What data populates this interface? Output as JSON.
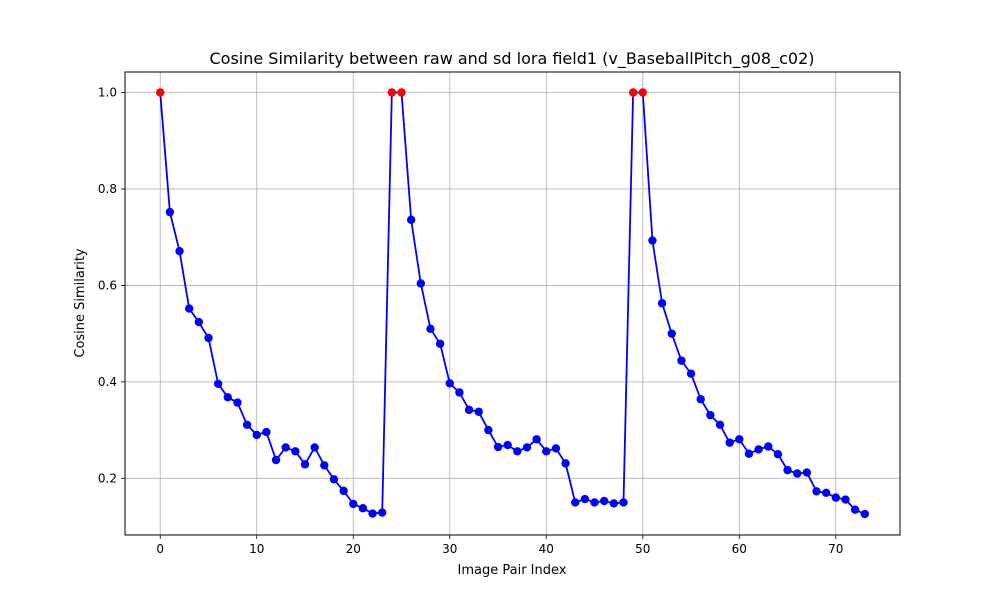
{
  "chart_data": {
    "type": "line",
    "title": "Cosine Similarity between raw and sd lora field1 (v_BaseballPitch_g08_c02)",
    "xlabel": "Image Pair Index",
    "ylabel": "Cosine Similarity",
    "xlim": [
      -3.65,
      76.65
    ],
    "ylim": [
      0.0825,
      1.0425
    ],
    "xticks": [
      0,
      10,
      20,
      30,
      40,
      50,
      60,
      70
    ],
    "yticks": [
      0.2,
      0.4,
      0.6,
      0.8,
      1.0
    ],
    "xtick_labels": [
      "0",
      "10",
      "20",
      "30",
      "40",
      "50",
      "60",
      "70"
    ],
    "ytick_labels": [
      "0.2",
      "0.4",
      "0.6",
      "0.8",
      "1.0"
    ],
    "grid": true,
    "line_color": "#0000ff",
    "marker_color": "#0000ff",
    "highlight_color": "#ff0000",
    "x": [
      0,
      1,
      2,
      3,
      4,
      5,
      6,
      7,
      8,
      9,
      10,
      11,
      12,
      13,
      14,
      15,
      16,
      17,
      18,
      19,
      20,
      21,
      22,
      23,
      24,
      25,
      26,
      27,
      28,
      29,
      30,
      31,
      32,
      33,
      34,
      35,
      36,
      37,
      38,
      39,
      40,
      41,
      42,
      43,
      44,
      45,
      46,
      47,
      48,
      49,
      50,
      51,
      52,
      53,
      54,
      55,
      56,
      57,
      58,
      59,
      60,
      61,
      62,
      63,
      64,
      65,
      66,
      67,
      68,
      69,
      70,
      71,
      72,
      73
    ],
    "y": [
      1.0,
      0.752,
      0.671,
      0.552,
      0.524,
      0.491,
      0.396,
      0.368,
      0.357,
      0.311,
      0.29,
      0.296,
      0.238,
      0.264,
      0.256,
      0.229,
      0.264,
      0.227,
      0.198,
      0.174,
      0.147,
      0.138,
      0.127,
      0.129,
      1.0,
      1.0,
      0.736,
      0.604,
      0.51,
      0.479,
      0.397,
      0.378,
      0.342,
      0.338,
      0.3,
      0.265,
      0.269,
      0.256,
      0.264,
      0.281,
      0.256,
      0.262,
      0.231,
      0.15,
      0.157,
      0.15,
      0.153,
      0.148,
      0.15,
      1.0,
      1.0,
      0.693,
      0.563,
      0.5,
      0.444,
      0.417,
      0.364,
      0.331,
      0.311,
      0.274,
      0.281,
      0.251,
      0.26,
      0.266,
      0.25,
      0.217,
      0.21,
      0.212,
      0.173,
      0.17,
      0.16,
      0.156,
      0.135,
      0.126
    ],
    "highlight_indices": [
      0,
      24,
      25,
      49,
      50
    ]
  }
}
